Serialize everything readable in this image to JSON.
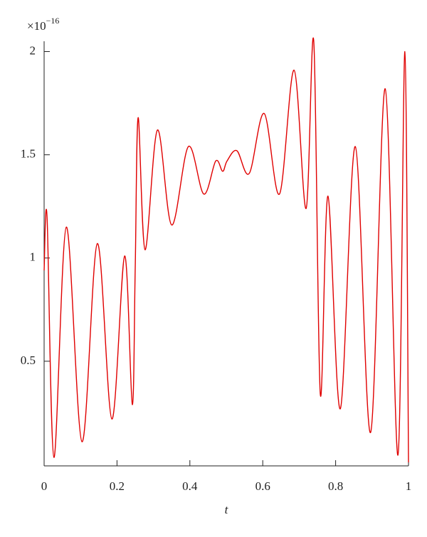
{
  "chart_data": {
    "type": "line",
    "x_label": "t",
    "y_multiplier": {
      "base": "×10",
      "exponent": "−16"
    },
    "x": [
      0,
      0.008,
      0.027,
      0.061,
      0.104,
      0.146,
      0.186,
      0.221,
      0.242,
      0.25,
      0.258,
      0.277,
      0.311,
      0.35,
      0.396,
      0.438,
      0.471,
      0.49,
      0.502,
      0.529,
      0.563,
      0.604,
      0.646,
      0.686,
      0.719,
      0.74,
      0.758,
      0.779,
      0.813,
      0.854,
      0.896,
      0.936,
      0.971,
      0.99,
      1
    ],
    "series": [
      {
        "color": "#e00000",
        "values": [
          0.94,
          1.2,
          0.034,
          1.15,
          0.11,
          1.07,
          0.22,
          1.01,
          0.29,
          0.95,
          1.68,
          1.04,
          1.62,
          1.16,
          1.54,
          1.31,
          1.47,
          1.42,
          1.47,
          1.52,
          1.41,
          1.7,
          1.31,
          1.91,
          1.24,
          2.05,
          0.34,
          1.3,
          0.27,
          1.54,
          0.155,
          1.82,
          0.045,
          2.0,
          0.01
        ]
      }
    ],
    "xlim": [
      0,
      1
    ],
    "xticks": [
      0,
      0.2,
      0.4,
      0.6,
      0.8,
      1
    ],
    "ylim": [
      0,
      2.05
    ],
    "yticks": [
      0.5,
      1,
      1.5,
      2
    ]
  }
}
